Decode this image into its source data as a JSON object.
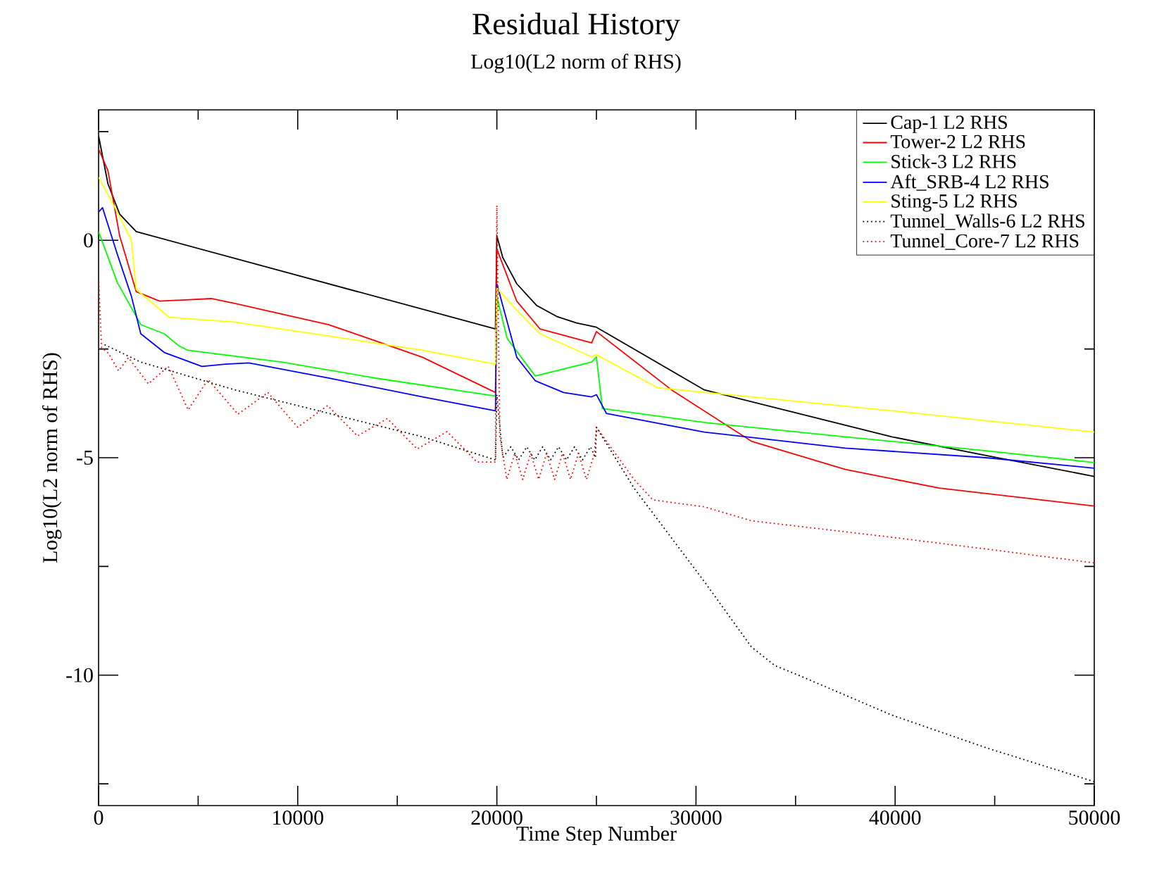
{
  "chart_data": {
    "type": "line",
    "title": "Residual History",
    "subtitle": "Log10(L2 norm of RHS)",
    "xlabel": "Time Step Number",
    "ylabel": "Log10(L2 norm of RHS)",
    "xlim": [
      0,
      50000
    ],
    "ylim": [
      -13,
      3
    ],
    "xticks": [
      0,
      {
        "value": 5000,
        "label": null
      },
      10000,
      {
        "value": 15000,
        "label": null
      },
      20000,
      {
        "value": 25000,
        "label": null
      },
      30000,
      {
        "value": 35000,
        "label": null
      },
      40000,
      {
        "value": 45000,
        "label": null
      },
      50000
    ],
    "yticks": [
      {
        "value": 2.5,
        "label": null
      },
      0,
      {
        "value": -2.5,
        "label": null
      },
      -5,
      {
        "value": -7.5,
        "label": null
      },
      -10,
      {
        "value": -12.5,
        "label": null
      }
    ],
    "legend": "top right",
    "series": [
      {
        "name": "Cap-1 L2 RHS",
        "color": "#000000",
        "line_style": "solid",
        "x": [
          0,
          470,
          1060,
          1890,
          19930,
          20000,
          20300,
          21000,
          22000,
          23000,
          24000,
          25000,
          30420,
          35140,
          39840,
          44570,
          50000
        ],
        "values": [
          2.4,
          1.3,
          0.6,
          0.2,
          -2.04,
          0.1,
          -0.4,
          -1.0,
          -1.5,
          -1.75,
          -1.9,
          -2.0,
          -3.44,
          -3.98,
          -4.52,
          -4.95,
          -5.43
        ]
      },
      {
        "name": "Tower-2 L2 RHS",
        "color": "#ff0000",
        "line_style": "solid",
        "x": [
          0,
          470,
          1060,
          1890,
          3070,
          5660,
          6840,
          11560,
          16270,
          19930,
          20000,
          21000,
          22170,
          24760,
          25000,
          28770,
          32780,
          37500,
          42220,
          50000
        ],
        "values": [
          2.1,
          1.6,
          0.1,
          -1.18,
          -1.4,
          -1.34,
          -1.45,
          -1.94,
          -2.69,
          -3.5,
          -0.2,
          -1.4,
          -2.04,
          -2.36,
          -2.1,
          -3.44,
          -4.62,
          -5.27,
          -5.7,
          -6.11
        ]
      },
      {
        "name": "Stick-3 L2 RHS",
        "color": "#00ff00",
        "line_style": "solid",
        "x": [
          0,
          940,
          2120,
          3300,
          4010,
          4480,
          9200,
          13920,
          19930,
          20000,
          20520,
          21930,
          24760,
          25000,
          25300,
          30420,
          37500,
          44570,
          50000
        ],
        "values": [
          0.2,
          -0.97,
          -1.94,
          -2.15,
          -2.42,
          -2.53,
          -2.8,
          -3.17,
          -3.58,
          -1.3,
          -2.26,
          -3.12,
          -2.8,
          -2.68,
          -3.87,
          -4.19,
          -4.52,
          -4.84,
          -5.11
        ]
      },
      {
        "name": "Aft_SRB-4 L2 RHS",
        "color": "#0000ff",
        "line_style": "solid",
        "x": [
          0,
          200,
          940,
          1650,
          2120,
          3300,
          5190,
          6370,
          7550,
          11560,
          16270,
          19930,
          20000,
          21000,
          21930,
          23350,
          24760,
          25000,
          25500,
          30420,
          37500,
          44570,
          50000
        ],
        "values": [
          0.65,
          0.75,
          -0.32,
          -1.29,
          -2.15,
          -2.58,
          -2.9,
          -2.85,
          -2.82,
          -3.17,
          -3.6,
          -3.92,
          -1.0,
          -2.69,
          -3.23,
          -3.5,
          -3.6,
          -3.55,
          -3.98,
          -4.41,
          -4.78,
          -5.0,
          -5.24
        ]
      },
      {
        "name": "Sting-5 L2 RHS",
        "color": "#ffff00",
        "line_style": "solid",
        "x": [
          0,
          940,
          1650,
          1890,
          3540,
          6840,
          11560,
          16270,
          19930,
          20000,
          21000,
          22170,
          24760,
          25000,
          28060,
          32780,
          39840,
          50000
        ],
        "values": [
          1.45,
          0.65,
          0,
          -1.13,
          -1.77,
          -1.88,
          -2.2,
          -2.53,
          -2.85,
          -1.1,
          -1.61,
          -2.15,
          -2.68,
          -2.63,
          -3.39,
          -3.6,
          -3.92,
          -4.41
        ]
      },
      {
        "name": "Tunnel_Walls-6 L2 RHS",
        "color": "#000000",
        "line_style": "dotted",
        "x": [
          300,
          2120,
          6840,
          11560,
          16270,
          19930,
          20000,
          20300,
          20700,
          21100,
          21500,
          21900,
          22300,
          22700,
          23100,
          23500,
          23900,
          24300,
          24700,
          24950,
          25000,
          26890,
          30420,
          32780,
          33960,
          35140,
          39840,
          44570,
          50000
        ],
        "values": [
          -2.4,
          -2.8,
          -3.44,
          -3.98,
          -4.52,
          -5.05,
          -3.55,
          -5.0,
          -4.75,
          -5.05,
          -4.75,
          -5.05,
          -4.75,
          -5.05,
          -4.75,
          -5.05,
          -4.75,
          -5.05,
          -4.75,
          -5.0,
          -4.3,
          -5.7,
          -7.85,
          -9.35,
          -9.78,
          -10.0,
          -10.92,
          -11.67,
          -12.45
        ]
      },
      {
        "name": "Tunnel_Core-7 L2 RHS",
        "color": "#ff0000",
        "line_style": "dotted",
        "x": [
          0,
          150,
          500,
          1000,
          1500,
          2500,
          3500,
          4500,
          5500,
          7000,
          8500,
          10000,
          11500,
          13000,
          14500,
          16000,
          17500,
          19000,
          19930,
          20000,
          20150,
          20500,
          20900,
          21300,
          21700,
          22100,
          22500,
          22900,
          23300,
          23700,
          24100,
          24500,
          24900,
          25000,
          26890,
          27830,
          30420,
          32780,
          39840,
          44570,
          50000
        ],
        "values": [
          -0.86,
          -2.47,
          -2.6,
          -3.0,
          -2.7,
          -3.3,
          -2.9,
          -3.9,
          -3.2,
          -4.0,
          -3.5,
          -4.3,
          -3.8,
          -4.5,
          -4.1,
          -4.8,
          -4.4,
          -5.1,
          -5.1,
          0.8,
          -4.5,
          -5.5,
          -4.9,
          -5.5,
          -4.9,
          -5.5,
          -4.9,
          -5.5,
          -4.9,
          -5.5,
          -4.9,
          -5.5,
          -4.9,
          -4.3,
          -5.5,
          -5.97,
          -6.13,
          -6.45,
          -6.83,
          -7.1,
          -7.42
        ]
      }
    ]
  }
}
